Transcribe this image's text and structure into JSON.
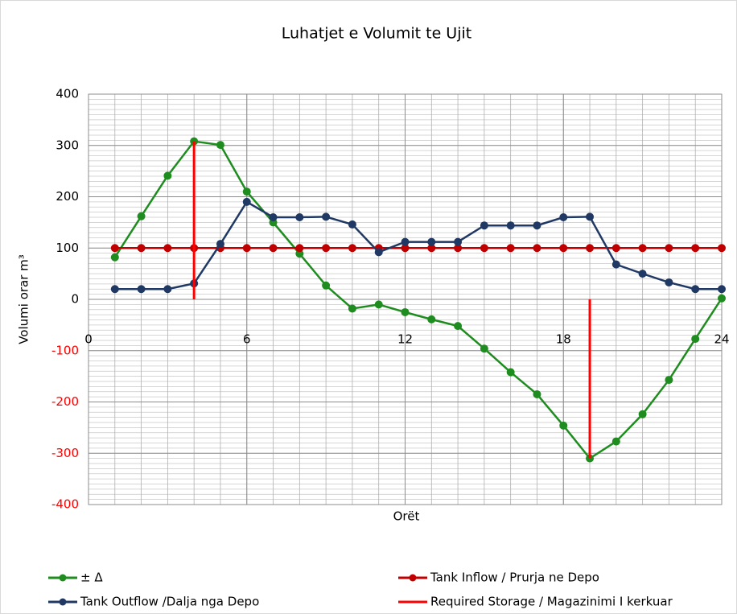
{
  "chart_data": {
    "type": "line",
    "title": "Luhatjet e Volumit te Ujit",
    "xlabel": "Orët",
    "ylabel": "Volumi orar m³",
    "xlim": [
      0,
      24
    ],
    "xticks": [
      0,
      6,
      12,
      18,
      24
    ],
    "ylim": [
      -400,
      400
    ],
    "yticks": [
      -400,
      -300,
      -200,
      -100,
      0,
      100,
      200,
      300,
      400
    ],
    "negative_tick_color": "#ff0000",
    "grid": true,
    "minor_grid": {
      "x": 1,
      "y": 10
    },
    "legend": "bottom",
    "x": [
      1,
      2,
      3,
      4,
      5,
      6,
      7,
      8,
      9,
      10,
      11,
      12,
      13,
      14,
      15,
      16,
      17,
      18,
      19,
      20,
      21,
      22,
      23,
      24
    ],
    "series": [
      {
        "name": "± Δ",
        "color": "#1e8c1e",
        "marker": true,
        "values": [
          82,
          162,
          241,
          308,
          301,
          210,
          150,
          89,
          27,
          -18,
          -10,
          -25,
          -39,
          -52,
          -96,
          -142,
          -185,
          -246,
          -310,
          -277,
          -224,
          -157,
          -77,
          2
        ]
      },
      {
        "name": "Tank Inflow / Prurja ne Depo",
        "color": "#c00000",
        "marker": true,
        "values": [
          100,
          100,
          100,
          100,
          100,
          100,
          100,
          100,
          100,
          100,
          100,
          100,
          100,
          100,
          100,
          100,
          100,
          100,
          100,
          100,
          100,
          100,
          100,
          100
        ]
      },
      {
        "name": "Tank Outflow /Dalja nga Depo",
        "color": "#1f3864",
        "marker": true,
        "values": [
          20,
          20,
          20,
          31,
          108,
          190,
          160,
          160,
          161,
          146,
          92,
          112,
          112,
          112,
          144,
          144,
          144,
          160,
          161,
          68,
          50,
          33,
          20,
          20
        ]
      },
      {
        "name": "Required Storage / Magazinimi I kerkuar",
        "color": "#ff0000",
        "marker": false,
        "x": [
          4,
          4,
          null,
          19,
          19
        ],
        "values": [
          0,
          308,
          null,
          0,
          -310
        ]
      }
    ]
  }
}
